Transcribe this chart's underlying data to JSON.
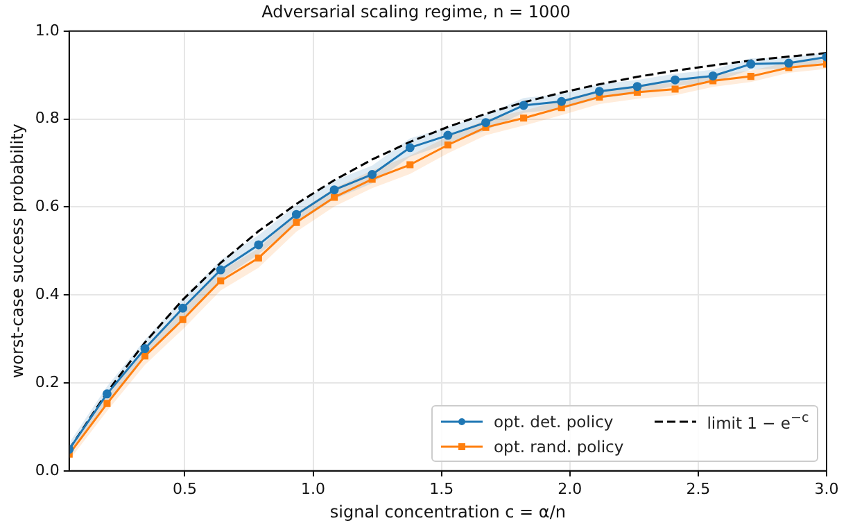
{
  "chart_data": {
    "type": "line",
    "title": "Adversarial scaling regime, n = 1000",
    "xlabel": "signal concentration c = α/n",
    "ylabel": "worst-case success probability",
    "x": [
      0.05,
      0.1975,
      0.345,
      0.4925,
      0.64,
      0.7875,
      0.935,
      1.0825,
      1.23,
      1.3775,
      1.525,
      1.6725,
      1.82,
      1.9675,
      2.115,
      2.2625,
      2.41,
      2.5575,
      2.705,
      2.8525,
      3.0
    ],
    "series": [
      {
        "name": "opt. det. policy",
        "color": "#1f77b4",
        "marker": "circle",
        "values": [
          0.049,
          0.175,
          0.278,
          0.37,
          0.457,
          0.514,
          0.583,
          0.639,
          0.674,
          0.735,
          0.763,
          0.792,
          0.831,
          0.84,
          0.863,
          0.874,
          0.889,
          0.898,
          0.925,
          0.927,
          0.941
        ],
        "lower": [
          0.035,
          0.158,
          0.258,
          0.348,
          0.435,
          0.492,
          0.562,
          0.618,
          0.654,
          0.714,
          0.744,
          0.774,
          0.814,
          0.823,
          0.847,
          0.859,
          0.875,
          0.884,
          0.912,
          0.915,
          0.93
        ],
        "upper": [
          0.063,
          0.192,
          0.298,
          0.392,
          0.479,
          0.536,
          0.604,
          0.66,
          0.694,
          0.756,
          0.782,
          0.81,
          0.848,
          0.857,
          0.879,
          0.889,
          0.903,
          0.912,
          0.938,
          0.939,
          0.952
        ]
      },
      {
        "name": "opt. rand. policy",
        "color": "#ff7f0e",
        "marker": "square",
        "values": [
          0.038,
          0.153,
          0.261,
          0.344,
          0.432,
          0.484,
          0.565,
          0.622,
          0.663,
          0.696,
          0.741,
          0.781,
          0.802,
          0.826,
          0.85,
          0.861,
          0.868,
          0.887,
          0.897,
          0.917,
          0.925
        ],
        "lower": [
          0.024,
          0.136,
          0.241,
          0.322,
          0.41,
          0.462,
          0.544,
          0.601,
          0.643,
          0.675,
          0.722,
          0.763,
          0.785,
          0.809,
          0.834,
          0.846,
          0.854,
          0.873,
          0.884,
          0.905,
          0.914
        ],
        "upper": [
          0.052,
          0.17,
          0.281,
          0.366,
          0.454,
          0.506,
          0.586,
          0.643,
          0.683,
          0.717,
          0.76,
          0.799,
          0.819,
          0.843,
          0.866,
          0.876,
          0.882,
          0.901,
          0.91,
          0.929,
          0.936
        ]
      },
      {
        "name": "limit 1 − e$^{−c}$",
        "color": "#000000",
        "marker": "none",
        "line_style": "dashed",
        "values": [
          0.049,
          0.179,
          0.292,
          0.389,
          0.473,
          0.545,
          0.607,
          0.661,
          0.708,
          0.748,
          0.782,
          0.812,
          0.838,
          0.86,
          0.879,
          0.896,
          0.91,
          0.922,
          0.933,
          0.942,
          0.95
        ]
      }
    ],
    "xlim": [
      0.05,
      3.0
    ],
    "xticks": [
      {
        "value": 0.5,
        "label": "0.5"
      },
      {
        "value": 1.0,
        "label": "1.0"
      },
      {
        "value": 1.5,
        "label": "1.5"
      },
      {
        "value": 2.0,
        "label": "2.0"
      },
      {
        "value": 2.5,
        "label": "2.5"
      },
      {
        "value": 3.0,
        "label": "3.0"
      }
    ],
    "ylim": [
      0,
      1
    ],
    "yticks": [
      {
        "value": 0,
        "label": "0.0"
      },
      {
        "value": 0.2,
        "label": "0.2"
      },
      {
        "value": 0.4,
        "label": "0.4"
      },
      {
        "value": 0.6,
        "label": "0.6"
      },
      {
        "value": 0.8,
        "label": "0.8"
      },
      {
        "value": 1.0,
        "label": "1.0"
      }
    ],
    "grid": true,
    "legend": "bottom right"
  }
}
